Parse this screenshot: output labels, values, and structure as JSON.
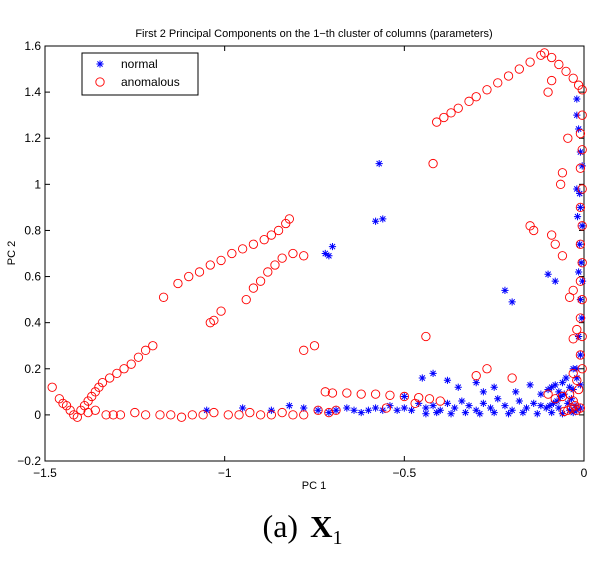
{
  "chart_data": {
    "type": "scatter",
    "title": "First 2 Principal Components on the 1−th cluster of columns (parameters)",
    "xlabel": "PC 1",
    "ylabel": "PC 2",
    "xlim": [
      -1.5,
      0
    ],
    "ylim": [
      -0.2,
      1.6
    ],
    "xticks": [
      -1.5,
      -1,
      -0.5,
      0
    ],
    "xtick_labels": [
      "−1.5",
      "−1",
      "−0.5",
      "0"
    ],
    "yticks": [
      -0.2,
      0,
      0.2,
      0.4,
      0.6,
      0.8,
      1,
      1.2,
      1.4,
      1.6
    ],
    "ytick_labels": [
      "−0.2",
      "0",
      "0.2",
      "0.4",
      "0.6",
      "0.8",
      "1",
      "1.2",
      "1.4",
      "1.6"
    ],
    "grid": false,
    "legend_position": "top-left",
    "series": [
      {
        "name": "normal",
        "marker": "asterisk",
        "color": "#0000ff",
        "points": [
          [
            -0.57,
            1.09
          ],
          [
            -0.56,
            0.85
          ],
          [
            -0.58,
            0.84
          ],
          [
            -0.7,
            0.73
          ],
          [
            -0.72,
            0.7
          ],
          [
            -0.71,
            0.69
          ],
          [
            -0.22,
            0.54
          ],
          [
            -0.2,
            0.49
          ],
          [
            -0.1,
            0.61
          ],
          [
            -0.08,
            0.58
          ],
          [
            -0.02,
            1.37
          ],
          [
            -0.02,
            1.3
          ],
          [
            -0.015,
            1.24
          ],
          [
            -0.01,
            1.14
          ],
          [
            -0.005,
            1.08
          ],
          [
            -0.02,
            0.98
          ],
          [
            -0.01,
            0.9
          ],
          [
            -0.005,
            0.82
          ],
          [
            -0.012,
            0.74
          ],
          [
            -0.008,
            0.66
          ],
          [
            -0.004,
            0.58
          ],
          [
            -0.01,
            0.5
          ],
          [
            -0.006,
            0.42
          ],
          [
            -0.015,
            0.34
          ],
          [
            -0.01,
            0.26
          ],
          [
            -0.02,
            0.2
          ],
          [
            -0.05,
            0.16
          ],
          [
            -0.06,
            0.14
          ],
          [
            -0.08,
            0.13
          ],
          [
            -0.09,
            0.12
          ],
          [
            -0.04,
            0.12
          ],
          [
            -0.03,
            0.11
          ],
          [
            -0.055,
            0.09
          ],
          [
            -0.065,
            0.08
          ],
          [
            -0.035,
            0.07
          ],
          [
            -0.075,
            0.06
          ],
          [
            -0.045,
            0.05
          ],
          [
            -0.085,
            0.05
          ],
          [
            -0.095,
            0.04
          ],
          [
            -0.025,
            0.04
          ],
          [
            -0.105,
            0.03
          ],
          [
            -0.12,
            0.04
          ],
          [
            -0.14,
            0.05
          ],
          [
            -0.16,
            0.03
          ],
          [
            -0.18,
            0.06
          ],
          [
            -0.2,
            0.02
          ],
          [
            -0.22,
            0.04
          ],
          [
            -0.24,
            0.07
          ],
          [
            -0.26,
            0.03
          ],
          [
            -0.28,
            0.05
          ],
          [
            -0.3,
            0.02
          ],
          [
            -0.32,
            0.04
          ],
          [
            -0.34,
            0.06
          ],
          [
            -0.36,
            0.03
          ],
          [
            -0.38,
            0.05
          ],
          [
            -0.4,
            0.02
          ],
          [
            -0.42,
            0.04
          ],
          [
            -0.44,
            0.03
          ],
          [
            -0.46,
            0.05
          ],
          [
            -0.48,
            0.02
          ],
          [
            -0.5,
            0.03
          ],
          [
            -0.52,
            0.02
          ],
          [
            -0.54,
            0.04
          ],
          [
            -0.56,
            0.02
          ],
          [
            -0.58,
            0.03
          ],
          [
            -0.6,
            0.02
          ],
          [
            -0.62,
            0.01
          ],
          [
            -0.64,
            0.02
          ],
          [
            -0.66,
            0.03
          ],
          [
            -0.69,
            0.02
          ],
          [
            -0.71,
            0.01
          ],
          [
            -0.74,
            0.02
          ],
          [
            -0.78,
            0.03
          ],
          [
            -0.82,
            0.04
          ],
          [
            -0.87,
            0.02
          ],
          [
            -0.95,
            0.03
          ],
          [
            -1.05,
            0.02
          ],
          [
            -0.5,
            0.08
          ],
          [
            -0.45,
            0.16
          ],
          [
            -0.42,
            0.18
          ],
          [
            -0.38,
            0.15
          ],
          [
            -0.35,
            0.12
          ],
          [
            -0.3,
            0.14
          ],
          [
            -0.28,
            0.1
          ],
          [
            -0.25,
            0.12
          ],
          [
            -0.19,
            0.1
          ],
          [
            -0.15,
            0.13
          ],
          [
            -0.12,
            0.09
          ],
          [
            -0.1,
            0.11
          ],
          [
            -0.07,
            0.1
          ],
          [
            -0.03,
            0.2
          ],
          [
            -0.02,
            0.16
          ],
          [
            -0.01,
            0.13
          ],
          [
            -0.03,
            0.01
          ],
          [
            -0.06,
            0.005
          ],
          [
            -0.09,
            0.01
          ],
          [
            -0.13,
            0.005
          ],
          [
            -0.17,
            0.01
          ],
          [
            -0.21,
            0.005
          ],
          [
            -0.25,
            0.01
          ],
          [
            -0.29,
            0.005
          ],
          [
            -0.33,
            0.01
          ],
          [
            -0.37,
            0.005
          ],
          [
            -0.41,
            0.01
          ],
          [
            -0.44,
            0.005
          ],
          [
            -0.015,
            0.62
          ],
          [
            -0.018,
            0.86
          ],
          [
            -0.012,
            0.96
          ],
          [
            -0.02,
            0.02
          ],
          [
            -0.01,
            0.03
          ],
          [
            -0.04,
            0.02
          ],
          [
            -0.07,
            0.03
          ]
        ]
      },
      {
        "name": "anomalous",
        "marker": "circle",
        "color": "#ff0000",
        "points": [
          [
            -1.48,
            0.12
          ],
          [
            -1.46,
            0.07
          ],
          [
            -1.45,
            0.05
          ],
          [
            -1.44,
            0.04
          ],
          [
            -1.43,
            0.02
          ],
          [
            -1.42,
            0.0
          ],
          [
            -1.41,
            -0.01
          ],
          [
            -1.4,
            0.02
          ],
          [
            -1.39,
            0.04
          ],
          [
            -1.38,
            0.06
          ],
          [
            -1.37,
            0.08
          ],
          [
            -1.36,
            0.1
          ],
          [
            -1.35,
            0.12
          ],
          [
            -1.34,
            0.14
          ],
          [
            -1.32,
            0.16
          ],
          [
            -1.3,
            0.18
          ],
          [
            -1.28,
            0.2
          ],
          [
            -1.26,
            0.22
          ],
          [
            -1.24,
            0.25
          ],
          [
            -1.22,
            0.28
          ],
          [
            -1.2,
            0.3
          ],
          [
            -1.38,
            0.01
          ],
          [
            -1.36,
            0.02
          ],
          [
            -1.33,
            0.0
          ],
          [
            -1.31,
            0.0
          ],
          [
            -1.29,
            0.0
          ],
          [
            -1.25,
            0.01
          ],
          [
            -1.22,
            0.0
          ],
          [
            -1.18,
            0.0
          ],
          [
            -1.15,
            0.0
          ],
          [
            -1.12,
            -0.01
          ],
          [
            -1.09,
            0.0
          ],
          [
            -1.06,
            0.0
          ],
          [
            -1.03,
            0.01
          ],
          [
            -0.99,
            0.0
          ],
          [
            -0.96,
            0.0
          ],
          [
            -0.93,
            0.01
          ],
          [
            -0.9,
            0.0
          ],
          [
            -0.87,
            0.0
          ],
          [
            -0.84,
            0.01
          ],
          [
            -0.81,
            0.0
          ],
          [
            -0.78,
            0.0
          ],
          [
            -0.74,
            0.02
          ],
          [
            -0.71,
            0.01
          ],
          [
            -0.69,
            0.02
          ],
          [
            -1.17,
            0.51
          ],
          [
            -1.13,
            0.57
          ],
          [
            -1.1,
            0.6
          ],
          [
            -1.07,
            0.62
          ],
          [
            -1.04,
            0.65
          ],
          [
            -1.01,
            0.67
          ],
          [
            -0.98,
            0.7
          ],
          [
            -0.95,
            0.72
          ],
          [
            -0.92,
            0.74
          ],
          [
            -0.89,
            0.76
          ],
          [
            -0.87,
            0.78
          ],
          [
            -0.85,
            0.8
          ],
          [
            -0.83,
            0.83
          ],
          [
            -0.82,
            0.85
          ],
          [
            -0.94,
            0.5
          ],
          [
            -0.92,
            0.55
          ],
          [
            -0.9,
            0.58
          ],
          [
            -0.88,
            0.62
          ],
          [
            -0.86,
            0.65
          ],
          [
            -0.84,
            0.68
          ],
          [
            -0.81,
            0.7
          ],
          [
            -0.78,
            0.69
          ],
          [
            -1.04,
            0.4
          ],
          [
            -1.03,
            0.41
          ],
          [
            -1.01,
            0.45
          ],
          [
            -0.72,
            0.1
          ],
          [
            -0.7,
            0.095
          ],
          [
            -0.66,
            0.095
          ],
          [
            -0.62,
            0.09
          ],
          [
            -0.58,
            0.09
          ],
          [
            -0.54,
            0.085
          ],
          [
            -0.5,
            0.08
          ],
          [
            -0.46,
            0.075
          ],
          [
            -0.43,
            0.07
          ],
          [
            -0.4,
            0.06
          ],
          [
            -0.78,
            0.28
          ],
          [
            -0.75,
            0.3
          ],
          [
            -0.41,
            1.27
          ],
          [
            -0.39,
            1.29
          ],
          [
            -0.37,
            1.31
          ],
          [
            -0.35,
            1.33
          ],
          [
            -0.32,
            1.36
          ],
          [
            -0.3,
            1.38
          ],
          [
            -0.27,
            1.41
          ],
          [
            -0.24,
            1.44
          ],
          [
            -0.21,
            1.47
          ],
          [
            -0.18,
            1.5
          ],
          [
            -0.15,
            1.53
          ],
          [
            -0.12,
            1.56
          ],
          [
            -0.11,
            1.57
          ],
          [
            -0.09,
            1.55
          ],
          [
            -0.07,
            1.52
          ],
          [
            -0.05,
            1.49
          ],
          [
            -0.03,
            1.46
          ],
          [
            -0.015,
            1.43
          ],
          [
            -0.005,
            1.41
          ],
          [
            -0.09,
            1.45
          ],
          [
            -0.1,
            1.4
          ],
          [
            -0.005,
            1.3
          ],
          [
            -0.01,
            1.22
          ],
          [
            -0.005,
            1.15
          ],
          [
            -0.01,
            1.07
          ],
          [
            -0.005,
            0.98
          ],
          [
            -0.01,
            0.9
          ],
          [
            -0.005,
            0.82
          ],
          [
            -0.01,
            0.74
          ],
          [
            -0.005,
            0.66
          ],
          [
            -0.01,
            0.58
          ],
          [
            -0.005,
            0.5
          ],
          [
            -0.01,
            0.42
          ],
          [
            -0.005,
            0.34
          ],
          [
            -0.01,
            0.26
          ],
          [
            -0.005,
            0.2
          ],
          [
            -0.03,
            0.18
          ],
          [
            -0.02,
            0.15
          ],
          [
            -0.015,
            0.11
          ],
          [
            -0.04,
            0.09
          ],
          [
            -0.06,
            0.08
          ],
          [
            -0.08,
            0.07
          ],
          [
            -0.1,
            0.09
          ],
          [
            -0.03,
            0.06
          ],
          [
            -0.025,
            0.04
          ],
          [
            -0.035,
            0.03
          ],
          [
            -0.045,
            0.02
          ],
          [
            -0.055,
            0.015
          ],
          [
            -0.02,
            0.02
          ],
          [
            -0.01,
            0.03
          ],
          [
            -0.045,
            1.2
          ],
          [
            -0.06,
            1.05
          ],
          [
            -0.065,
            1.0
          ],
          [
            -0.15,
            0.82
          ],
          [
            -0.14,
            0.8
          ],
          [
            -0.09,
            0.78
          ],
          [
            -0.08,
            0.74
          ],
          [
            -0.06,
            0.69
          ],
          [
            -0.03,
            0.54
          ],
          [
            -0.04,
            0.51
          ],
          [
            -0.02,
            0.37
          ],
          [
            -0.03,
            0.33
          ],
          [
            -0.42,
            1.09
          ],
          [
            -0.44,
            0.34
          ],
          [
            -0.27,
            0.2
          ],
          [
            -0.3,
            0.17
          ],
          [
            -0.2,
            0.16
          ],
          [
            -0.55,
            0.03
          ],
          [
            -0.47,
            0.05
          ]
        ]
      }
    ]
  },
  "caption": {
    "prefix": "(a)",
    "symbol": "X",
    "subscript": "1"
  }
}
